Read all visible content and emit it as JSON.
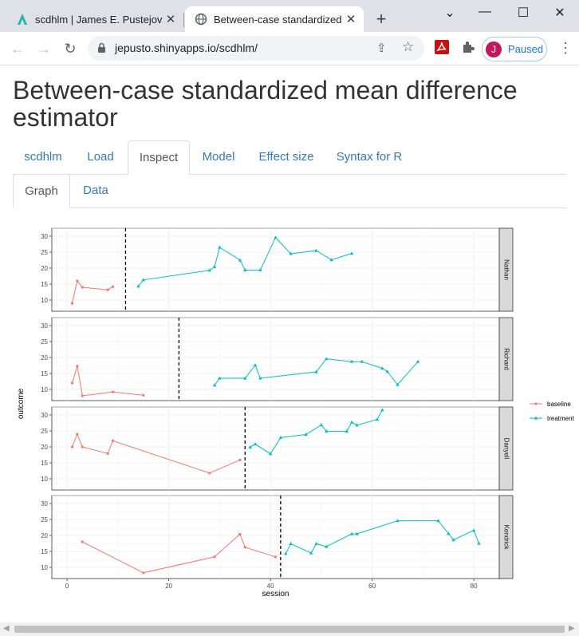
{
  "browser": {
    "tabs": [
      {
        "title": "scdhlm | James E. Pustejovsky",
        "icon": "shiny-logo-icon"
      },
      {
        "title": "Between-case standardized me",
        "icon": "globe-icon"
      }
    ],
    "url": "jepusto.shinyapps.io/scdhlm/",
    "profile_initial": "J",
    "profile_label": "Paused"
  },
  "page": {
    "title": "Between-case standardized mean difference estimator",
    "tabs": [
      "scdhlm",
      "Load",
      "Inspect",
      "Model",
      "Effect size",
      "Syntax for R"
    ],
    "active_tab": "Inspect",
    "subtabs": [
      "Graph",
      "Data"
    ],
    "active_subtab": "Graph"
  },
  "colors": {
    "baseline": "#F8766D",
    "treatment": "#00BFC4",
    "link": "#337ab7"
  },
  "chart_data": {
    "type": "line",
    "xlabel": "session",
    "ylabel": "outcome",
    "xlim": [
      -3,
      85
    ],
    "ylim": [
      6.5,
      32.5
    ],
    "xticks": [
      0,
      20,
      40,
      60,
      80
    ],
    "yticks": [
      10,
      15,
      20,
      25,
      30
    ],
    "legend": {
      "placement": "right",
      "entries": [
        "baseline",
        "treatment"
      ]
    },
    "panels": [
      {
        "name": "Nathan",
        "phase_change": 11.5,
        "baseline": [
          [
            1,
            9
          ],
          [
            2,
            16
          ],
          [
            3,
            14
          ],
          [
            8,
            13.2
          ],
          [
            9,
            14.2
          ]
        ],
        "treatment": [
          [
            14,
            14.3
          ],
          [
            15,
            16.3
          ],
          [
            28,
            19.3
          ],
          [
            29,
            20.4
          ],
          [
            30,
            26.5
          ],
          [
            34,
            22.5
          ],
          [
            35,
            19.4
          ],
          [
            38,
            19.4
          ],
          [
            41,
            29.6
          ],
          [
            44,
            24.5
          ],
          [
            49,
            25.5
          ],
          [
            52,
            22.6
          ],
          [
            56,
            24.6
          ]
        ]
      },
      {
        "name": "Richard",
        "phase_change": 22,
        "baseline": [
          [
            1,
            12
          ],
          [
            2,
            17.3
          ],
          [
            3,
            8
          ],
          [
            9,
            9.2
          ],
          [
            15,
            8.2
          ]
        ],
        "treatment": [
          [
            29,
            11.3
          ],
          [
            30,
            13.5
          ],
          [
            35,
            13.5
          ],
          [
            37,
            17.6
          ],
          [
            38,
            13.5
          ],
          [
            49,
            15.5
          ],
          [
            51,
            19.6
          ],
          [
            56,
            18.7
          ],
          [
            58,
            18.7
          ],
          [
            62,
            16.6
          ],
          [
            63,
            15.6
          ],
          [
            65,
            11.5
          ],
          [
            69,
            18.7
          ]
        ]
      },
      {
        "name": "Danyell",
        "phase_change": 35,
        "baseline": [
          [
            1,
            20
          ],
          [
            2,
            24
          ],
          [
            3,
            20
          ],
          [
            8,
            17.9
          ],
          [
            9,
            21.9
          ],
          [
            28,
            11.8
          ],
          [
            34,
            15.9
          ]
        ],
        "treatment": [
          [
            36,
            19.9
          ],
          [
            37,
            20.9
          ],
          [
            40,
            17.8
          ],
          [
            42,
            22.9
          ],
          [
            47,
            23.9
          ],
          [
            50,
            26.9
          ],
          [
            51,
            24.9
          ],
          [
            55,
            24.9
          ],
          [
            56,
            27.7
          ],
          [
            57,
            26.8
          ],
          [
            61,
            28.6
          ],
          [
            62,
            31.6
          ]
        ]
      },
      {
        "name": "Kendrick",
        "phase_change": 42,
        "baseline": [
          [
            3,
            18
          ],
          [
            15,
            8.3
          ],
          [
            29,
            13.3
          ],
          [
            34,
            20.4
          ],
          [
            35,
            16.3
          ],
          [
            41,
            13.3
          ]
        ],
        "treatment": [
          [
            43,
            14.3
          ],
          [
            44,
            17.4
          ],
          [
            48,
            14.5
          ],
          [
            49,
            17.4
          ],
          [
            51,
            16.5
          ],
          [
            56,
            20.5
          ],
          [
            57,
            20.5
          ],
          [
            65,
            24.6
          ],
          [
            73,
            24.6
          ],
          [
            75,
            20.6
          ],
          [
            76,
            18.6
          ],
          [
            80,
            21.6
          ],
          [
            81,
            17.5
          ]
        ]
      }
    ]
  }
}
